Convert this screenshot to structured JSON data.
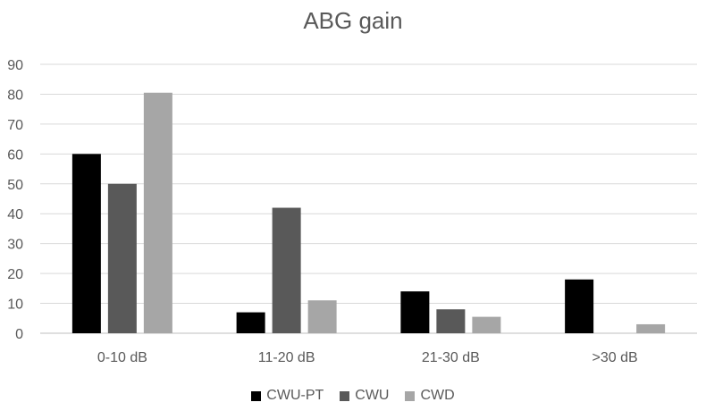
{
  "chart_data": {
    "type": "bar",
    "title": "ABG gain",
    "categories": [
      "0-10 dB",
      "11-20 dB",
      "21-30 dB",
      ">30 dB"
    ],
    "series": [
      {
        "name": "CWU-PT",
        "color": "#000000",
        "values": [
          60,
          7,
          14,
          18
        ]
      },
      {
        "name": "CWU",
        "color": "#595959",
        "values": [
          50,
          42,
          8,
          0
        ]
      },
      {
        "name": "CWD",
        "color": "#a6a6a6",
        "values": [
          80.5,
          11,
          5.5,
          3
        ]
      }
    ],
    "ylim": [
      0,
      90
    ],
    "yticks": [
      0,
      10,
      20,
      30,
      40,
      50,
      60,
      70,
      80,
      90
    ],
    "grid": true,
    "legend_position": "bottom"
  }
}
